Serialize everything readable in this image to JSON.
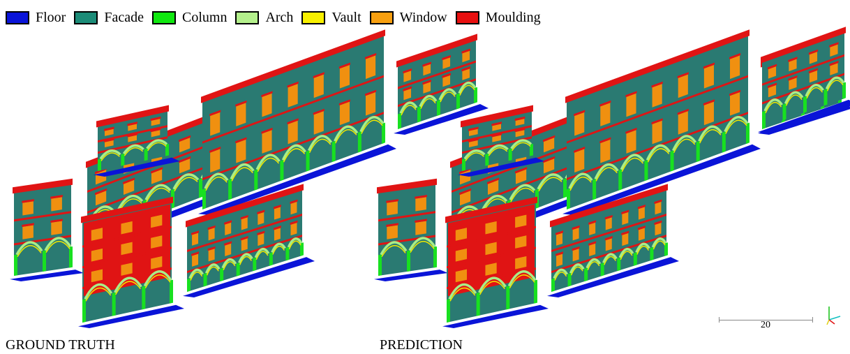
{
  "legend": [
    {
      "label": "Floor",
      "color": "#0a14d8"
    },
    {
      "label": "Facade",
      "color": "#1c8c78"
    },
    {
      "label": "Column",
      "color": "#10e810"
    },
    {
      "label": "Arch",
      "color": "#b4f08c"
    },
    {
      "label": "Vault",
      "color": "#f8f000"
    },
    {
      "label": "Window",
      "color": "#f8a010"
    },
    {
      "label": "Moulding",
      "color": "#e81010"
    }
  ],
  "captions": {
    "left": "GROUND TRUTH",
    "right": "PREDICTION"
  },
  "scale_label": "20",
  "colors": {
    "floor": "#0a14d8",
    "facade": "#2a7a72",
    "column": "#18e020",
    "arch": "#a8ee88",
    "vault": "#f0e800",
    "window": "#f09010",
    "moulding": "#e01414"
  }
}
